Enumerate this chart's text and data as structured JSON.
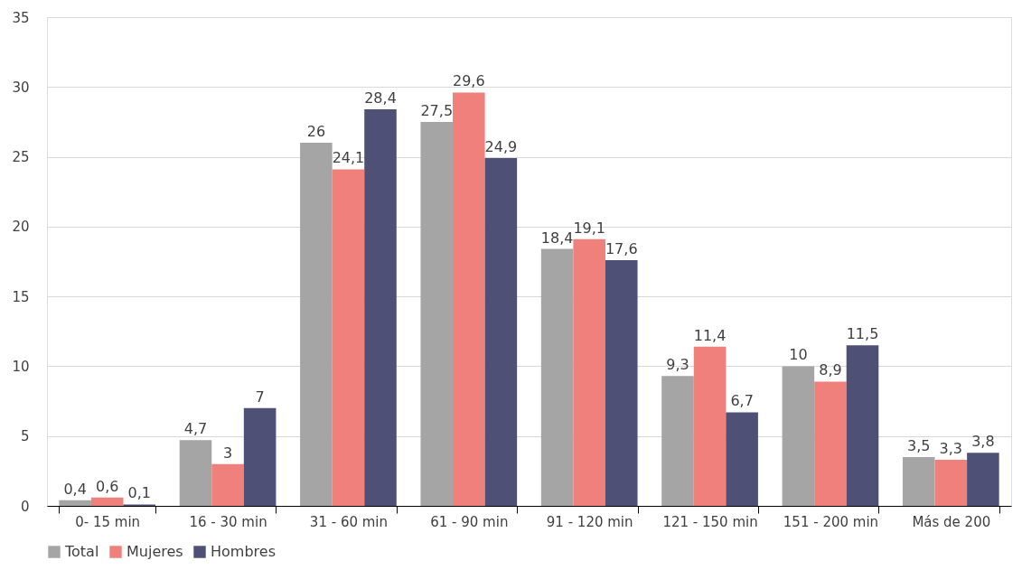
{
  "chart_data": {
    "type": "bar",
    "categories": [
      "0- 15 min",
      "16 - 30 min",
      "31 - 60 min",
      "61 - 90 min",
      "91 - 120 min",
      "121 - 150 min",
      "151 - 200 min",
      "Más de 200"
    ],
    "series": [
      {
        "name": "Total",
        "color": "#a5a5a5",
        "values": [
          0.4,
          4.7,
          26,
          27.5,
          18.4,
          9.3,
          10,
          3.5
        ],
        "value_labels": [
          "0,4",
          "4,7",
          "26",
          "27,5",
          "18,4",
          "9,3",
          "10",
          "3,5"
        ]
      },
      {
        "name": "Mujeres",
        "color": "#f0807b",
        "values": [
          0.6,
          3,
          24.1,
          29.6,
          19.1,
          11.4,
          8.9,
          3.3
        ],
        "value_labels": [
          "0,6",
          "3",
          "24,1",
          "29,6",
          "19,1",
          "11,4",
          "8,9",
          "3,3"
        ]
      },
      {
        "name": "Hombres",
        "color": "#4f5075",
        "values": [
          0.1,
          7,
          28.4,
          24.9,
          17.6,
          6.7,
          11.5,
          3.8
        ],
        "value_labels": [
          "0,1",
          "7",
          "28,4",
          "24,9",
          "17,6",
          "6,7",
          "11,5",
          "3,8"
        ]
      }
    ],
    "ylim": [
      0,
      35
    ],
    "yticks": [
      0,
      5,
      10,
      15,
      20,
      25,
      30,
      35
    ],
    "grid": "y",
    "legend": "bottom"
  }
}
